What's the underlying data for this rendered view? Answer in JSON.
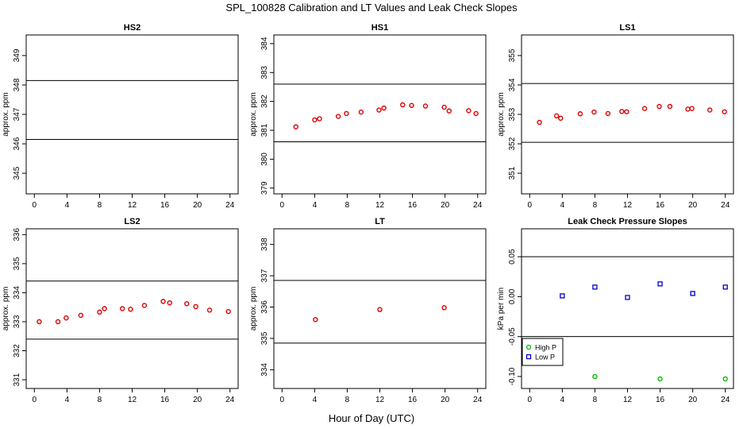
{
  "main_title": "SPL_100828  Calibration and LT Values and Leak Check Slopes",
  "x_label": "Hour of Day (UTC)",
  "colors": {
    "calibration": "#dd0000",
    "high_p": "#00bb00",
    "low_p": "#0000cc",
    "line": "#000000"
  },
  "chart_data": [
    {
      "type": "scatter",
      "title": "HS2",
      "ylabel": "approx. ppm",
      "xlim": [
        -1,
        25
      ],
      "ylim": [
        344.3,
        349.7
      ],
      "xticks": [
        0,
        4,
        8,
        12,
        16,
        20,
        24
      ],
      "yticks": [
        345,
        346,
        347,
        348,
        349
      ],
      "hlines": [
        346.15,
        348.15
      ],
      "series": [
        {
          "color": "#dd0000",
          "marker": "circle",
          "x": [],
          "y": []
        }
      ]
    },
    {
      "type": "scatter",
      "title": "HS1",
      "ylabel": "approx. ppm",
      "xlim": [
        -1,
        25
      ],
      "ylim": [
        378.8,
        384.3
      ],
      "xticks": [
        0,
        4,
        8,
        12,
        16,
        20,
        24
      ],
      "yticks": [
        379,
        380,
        381,
        382,
        383,
        384
      ],
      "hlines": [
        380.6,
        382.6
      ],
      "series": [
        {
          "color": "#dd0000",
          "marker": "circle",
          "x": [
            1.7,
            4.0,
            4.6,
            6.9,
            7.9,
            9.7,
            11.9,
            12.5,
            14.8,
            15.9,
            17.6,
            19.9,
            20.5,
            22.9,
            23.8
          ],
          "y": [
            381.12,
            381.36,
            381.4,
            381.48,
            381.58,
            381.63,
            381.7,
            381.77,
            381.88,
            381.86,
            381.84,
            381.8,
            381.67,
            381.68,
            381.58
          ]
        }
      ]
    },
    {
      "type": "scatter",
      "title": "LS1",
      "ylabel": "approx. ppm",
      "xlim": [
        -1,
        25
      ],
      "ylim": [
        350.3,
        355.7
      ],
      "xticks": [
        0,
        4,
        8,
        12,
        16,
        20,
        24
      ],
      "yticks": [
        351,
        352,
        353,
        354,
        355
      ],
      "hlines": [
        352.05,
        354.05
      ],
      "series": [
        {
          "color": "#dd0000",
          "marker": "circle",
          "x": [
            1.2,
            3.3,
            3.8,
            6.2,
            7.9,
            9.6,
            11.3,
            11.9,
            14.1,
            15.9,
            17.2,
            19.4,
            19.9,
            22.1,
            23.9
          ],
          "y": [
            352.73,
            352.95,
            352.87,
            353.02,
            353.08,
            353.03,
            353.1,
            353.09,
            353.2,
            353.27,
            353.27,
            353.18,
            353.2,
            353.15,
            353.09
          ]
        }
      ]
    },
    {
      "type": "scatter",
      "title": "LS2",
      "ylabel": "approx. ppm",
      "xlim": [
        -1,
        25
      ],
      "ylim": [
        330.7,
        336.2
      ],
      "xticks": [
        0,
        4,
        8,
        12,
        16,
        20,
        24
      ],
      "yticks": [
        331,
        332,
        333,
        334,
        335,
        336
      ],
      "hlines": [
        332.4,
        334.4
      ],
      "series": [
        {
          "color": "#dd0000",
          "marker": "circle",
          "x": [
            0.6,
            2.9,
            3.9,
            5.7,
            8.0,
            8.6,
            10.8,
            11.8,
            13.5,
            15.8,
            16.6,
            18.7,
            19.8,
            21.5,
            23.8
          ],
          "y": [
            333.0,
            333.0,
            333.13,
            333.22,
            333.33,
            333.45,
            333.45,
            333.43,
            333.56,
            333.7,
            333.65,
            333.62,
            333.52,
            333.4,
            333.35
          ]
        }
      ]
    },
    {
      "type": "scatter",
      "title": "LT",
      "ylabel": "approx. ppm",
      "xlim": [
        -1,
        25
      ],
      "ylim": [
        333.4,
        338.5
      ],
      "xticks": [
        0,
        4,
        8,
        12,
        16,
        20,
        24
      ],
      "yticks": [
        334,
        335,
        336,
        337,
        338
      ],
      "hlines": [
        334.85,
        336.85
      ],
      "series": [
        {
          "color": "#dd0000",
          "marker": "circle",
          "x": [
            4.1,
            12.0,
            19.9
          ],
          "y": [
            335.6,
            335.92,
            335.98
          ]
        }
      ]
    },
    {
      "type": "scatter",
      "title": "Leak Check Pressure Slopes",
      "ylabel": "kPa per min",
      "xlim": [
        -1,
        25
      ],
      "ylim": [
        -0.115,
        0.085
      ],
      "xticks": [
        0,
        4,
        8,
        12,
        16,
        20,
        24
      ],
      "yticks": [
        -0.1,
        -0.05,
        0.0,
        0.05
      ],
      "ytick_labels": [
        "-0.10",
        "-0.05",
        "0.00",
        "0.05"
      ],
      "hlines": [
        0.05,
        -0.05
      ],
      "legend": {
        "position": "bottom-left",
        "entries": [
          {
            "label": "High P",
            "color": "#00bb00"
          },
          {
            "label": "Low P",
            "color": "#0000cc"
          }
        ]
      },
      "series": [
        {
          "name": "High P",
          "color": "#00bb00",
          "marker": "circle",
          "x": [
            8.0,
            16.0,
            24.0
          ],
          "y": [
            -0.1,
            -0.103,
            -0.103
          ]
        },
        {
          "name": "Low P",
          "color": "#0000cc",
          "marker": "square",
          "x": [
            4.0,
            8.0,
            12.0,
            16.0,
            20.0,
            24.0
          ],
          "y": [
            0.001,
            0.012,
            -0.001,
            0.016,
            0.004,
            0.012
          ]
        }
      ]
    }
  ]
}
